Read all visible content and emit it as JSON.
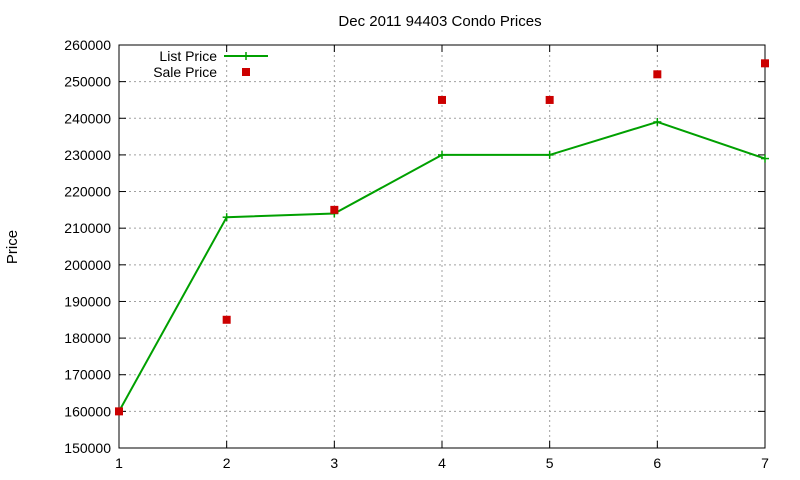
{
  "chart_data": {
    "type": "line",
    "title": "Dec 2011 94403 Condo Prices",
    "xlabel": "",
    "ylabel": "Price",
    "x": [
      1,
      2,
      3,
      4,
      5,
      6,
      7
    ],
    "xlim": [
      1,
      7
    ],
    "ylim": [
      150000,
      260000
    ],
    "xticks": [
      1,
      2,
      3,
      4,
      5,
      6,
      7
    ],
    "yticks": [
      150000,
      160000,
      170000,
      180000,
      190000,
      200000,
      210000,
      220000,
      230000,
      240000,
      250000,
      260000
    ],
    "grid": true,
    "legend_position": "top-left",
    "series": [
      {
        "name": "List Price",
        "style": "line-with-plus-markers",
        "color": "#00a000",
        "values": [
          160000,
          213000,
          214000,
          230000,
          230000,
          239000,
          229000
        ]
      },
      {
        "name": "Sale Price",
        "style": "square-markers",
        "color": "#cc0000",
        "values": [
          160000,
          185000,
          215000,
          245000,
          245000,
          252000,
          255000
        ]
      }
    ]
  }
}
